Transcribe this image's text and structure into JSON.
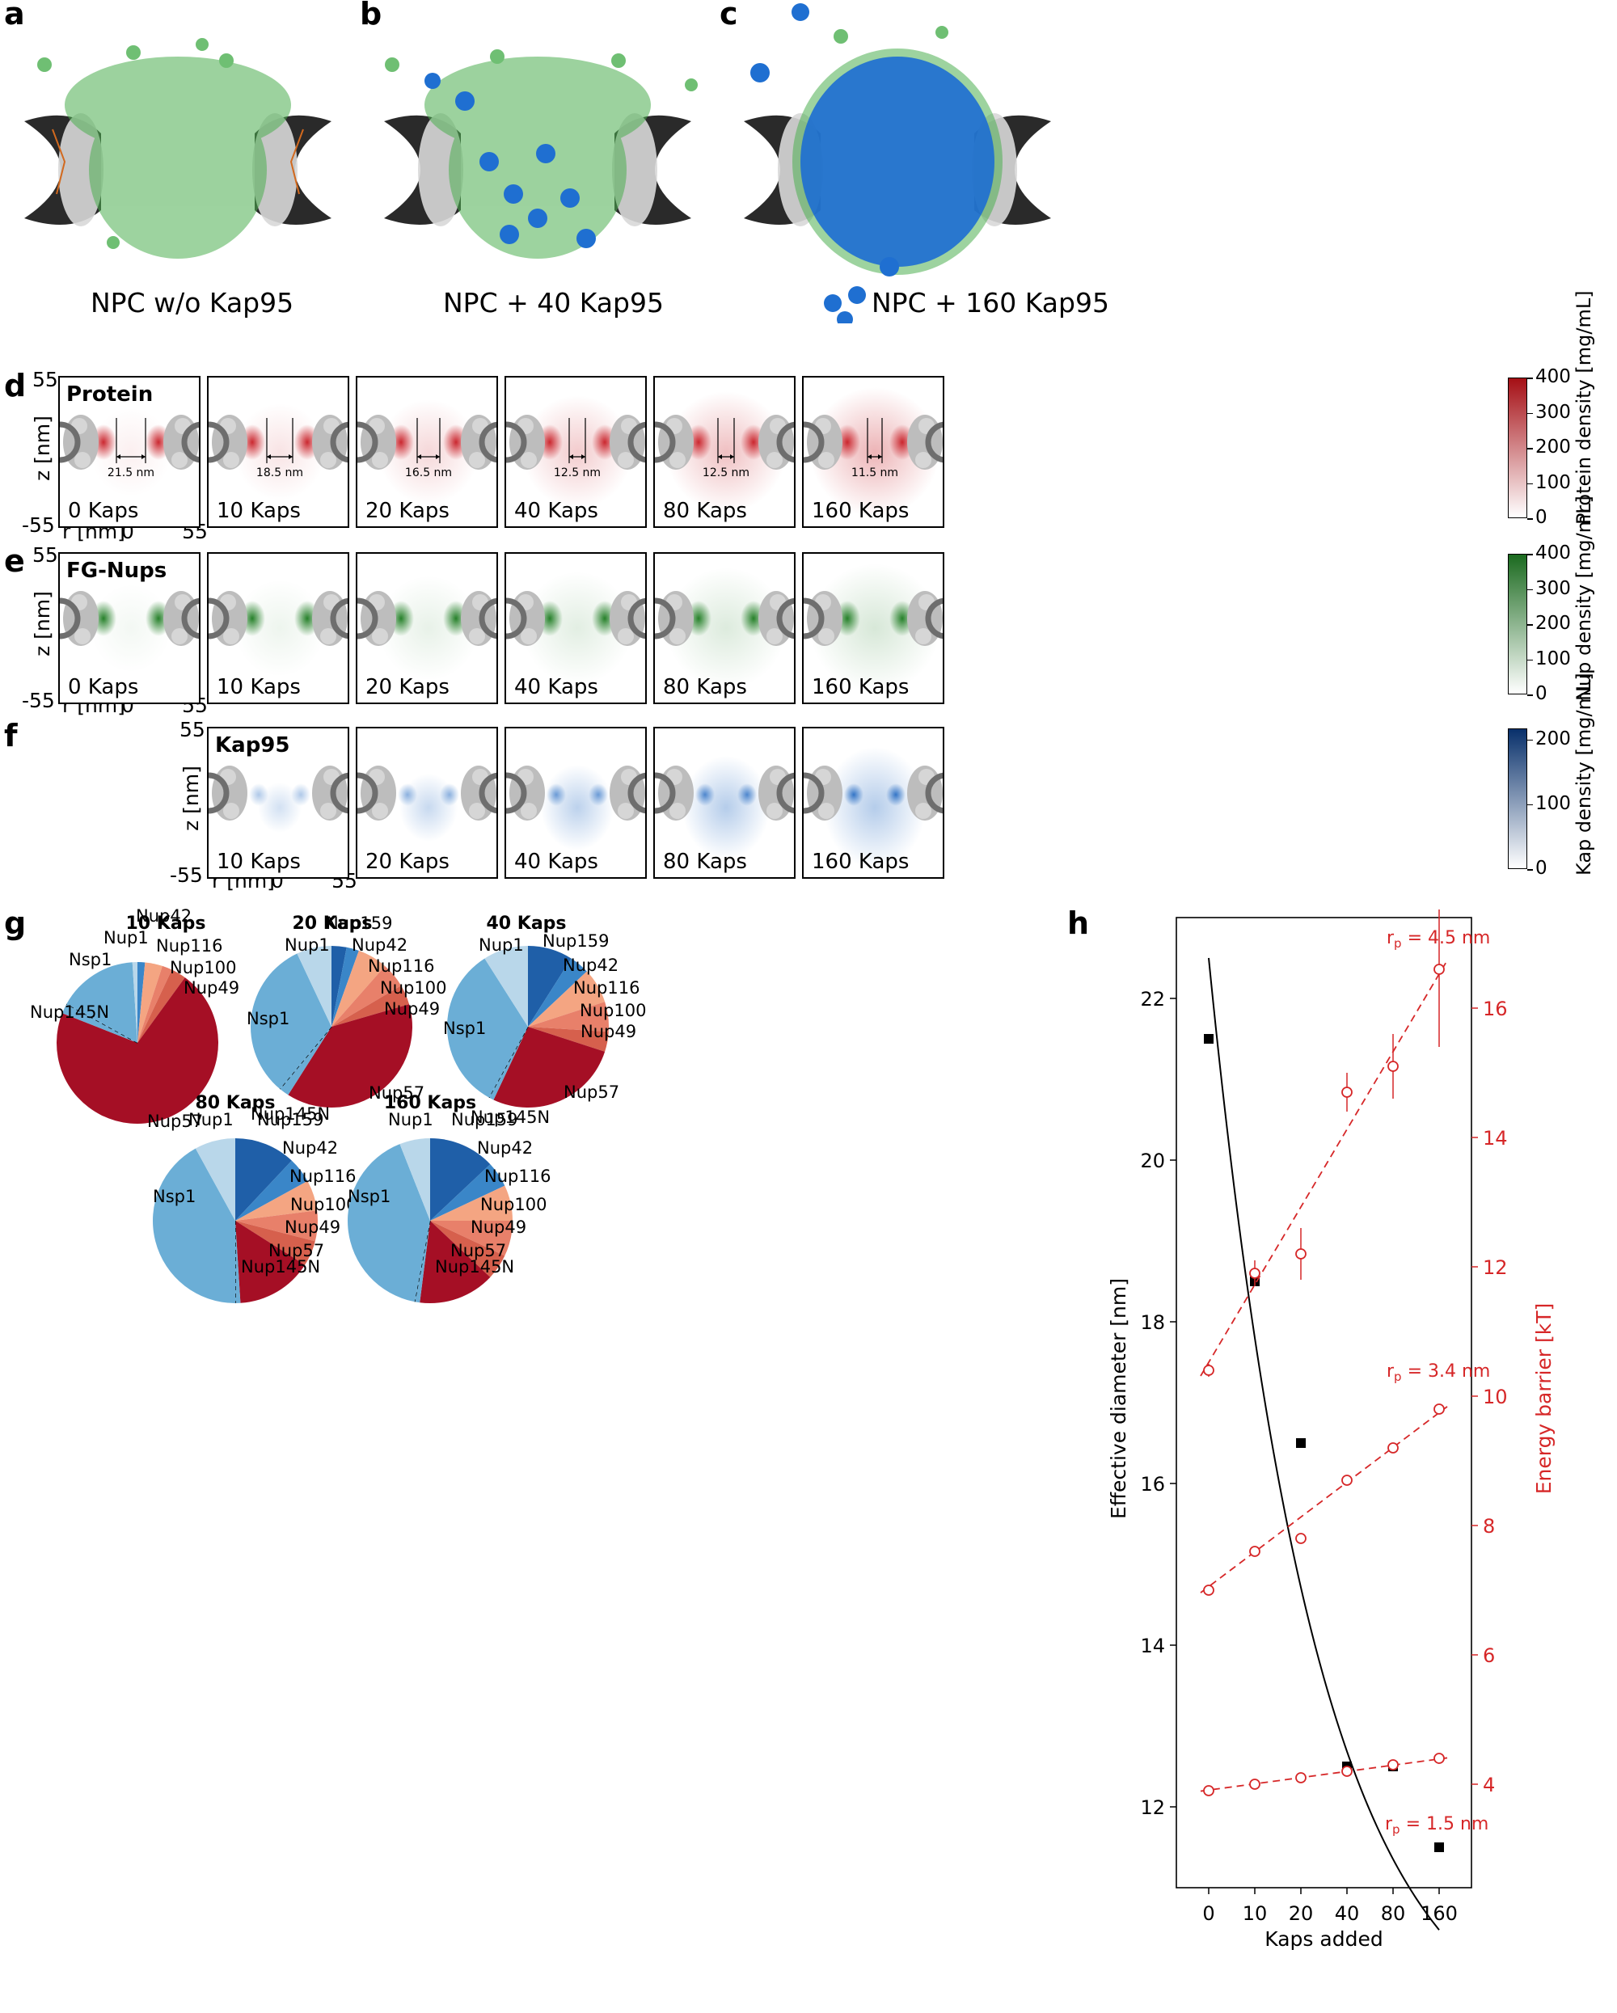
{
  "panels": {
    "a": {
      "letter": "a",
      "caption": "NPC w/o Kap95"
    },
    "b": {
      "letter": "b",
      "caption": "NPC + 40 Kap95"
    },
    "c": {
      "letter": "c",
      "caption": "NPC + 160 Kap95"
    },
    "d": {
      "letter": "d",
      "name": "Protein"
    },
    "e": {
      "letter": "e",
      "name": "FG-Nups"
    },
    "f": {
      "letter": "f",
      "name": "Kap95"
    },
    "g": {
      "letter": "g"
    },
    "h": {
      "letter": "h"
    }
  },
  "density_axes": {
    "z_label": "z [nm]",
    "r_label": "r [nm]",
    "z_top": "55",
    "z_bottom": "-55",
    "r_zero": "0",
    "r_max": "55"
  },
  "protein_row": {
    "kaps": [
      "0 Kaps",
      "10 Kaps",
      "20 Kaps",
      "40 Kaps",
      "80 Kaps",
      "160 Kaps"
    ],
    "diameters": [
      "21.5 nm",
      "18.5 nm",
      "16.5 nm",
      "12.5 nm",
      "12.5 nm",
      "11.5 nm"
    ],
    "colorbar": {
      "label": "Protein density [mg/mL]",
      "ticks": [
        "400",
        "300",
        "200",
        "100",
        "0"
      ],
      "color": "#a50f15"
    }
  },
  "fg_row": {
    "kaps": [
      "0 Kaps",
      "10 Kaps",
      "20 Kaps",
      "40 Kaps",
      "80 Kaps",
      "160 Kaps"
    ],
    "colorbar": {
      "label": "Nup density [mg/mL]",
      "ticks": [
        "400",
        "300",
        "200",
        "100",
        "0"
      ],
      "color": "#1b6a1f"
    }
  },
  "kap_row": {
    "kaps": [
      "10 Kaps",
      "20 Kaps",
      "40 Kaps",
      "80 Kaps",
      "160 Kaps"
    ],
    "colorbar": {
      "label": "Kap density [mg/mL]",
      "ticks": [
        "200",
        "100",
        "0"
      ],
      "color": "#08306b"
    }
  },
  "pies": [
    {
      "title": "10 Kaps",
      "labels": [
        "Nup1",
        "Nup42",
        "Nup116",
        "Nup100",
        "Nup49",
        "Nsp1",
        "Nup145N",
        "Nup57"
      ]
    },
    {
      "title": "20 Kaps",
      "labels": [
        "Nup1",
        "Nup159",
        "Nup42",
        "Nup116",
        "Nup100",
        "Nup49",
        "Nsp1",
        "Nup145N",
        "Nup57"
      ]
    },
    {
      "title": "40 Kaps",
      "labels": [
        "Nup1",
        "Nup159",
        "Nup42",
        "Nup116",
        "Nup100",
        "Nup49",
        "Nsp1",
        "Nup145N",
        "Nup57"
      ]
    },
    {
      "title": "80 Kaps",
      "labels": [
        "Nup1",
        "Nup159",
        "Nup42",
        "Nup116",
        "Nup100",
        "Nup49",
        "Nsp1",
        "Nup57",
        "Nup145N"
      ]
    },
    {
      "title": "160 Kaps",
      "labels": [
        "Nup1",
        "Nup159",
        "Nup42",
        "Nup116",
        "Nup100",
        "Nup49",
        "Nsp1",
        "Nup57",
        "Nup145N"
      ]
    }
  ],
  "pie_colors": {
    "Nup1": "#b9d7ea",
    "Nsp1": "#6baed6",
    "Nup145N": "#6baed6",
    "Nup159": "#1f5fa8",
    "Nup42": "#3a86c8",
    "Nup116": "#f4a582",
    "Nup100": "#e8806a",
    "Nup49": "#d6604d",
    "Nup57": "#a50f25"
  },
  "chart_data": {
    "type": "scatter",
    "xlabel": "Kaps added",
    "ylabel": "Effective diameter [nm]",
    "y2label": "Energy barrier [kT]",
    "x_ticks": [
      "0",
      "10",
      "20",
      "40",
      "80",
      "160"
    ],
    "categories": [
      "0",
      "10",
      "20",
      "40",
      "80",
      "160"
    ],
    "ylim": [
      11,
      23
    ],
    "y_ticks": [
      "12",
      "14",
      "16",
      "18",
      "20",
      "22"
    ],
    "y2lim": [
      2.4,
      17.4
    ],
    "y2_ticks": [
      "4",
      "6",
      "8",
      "10",
      "12",
      "14",
      "16"
    ],
    "series": [
      {
        "name": "",
        "axis": "left",
        "values": [
          21.5,
          18.5,
          16.5,
          12.5,
          12.5,
          11.5
        ],
        "color": "#000000"
      },
      {
        "name": "rp = 4.5 nm",
        "axis": "right",
        "values": [
          10.4,
          11.9,
          12.2,
          14.7,
          15.1,
          16.6
        ],
        "errors": [
          0.1,
          0.2,
          0.4,
          0.3,
          0.5,
          1.2
        ],
        "color": "#d62728"
      },
      {
        "name": "rp = 3.4 nm",
        "axis": "right",
        "values": [
          7.0,
          7.6,
          7.8,
          8.7,
          9.2,
          9.8
        ],
        "color": "#d62728"
      },
      {
        "name": "rp = 1.5 nm",
        "axis": "right",
        "values": [
          3.9,
          4.0,
          4.1,
          4.2,
          4.3,
          4.4
        ],
        "color": "#d62728"
      }
    ],
    "annotations": {
      "rp45_text": "r",
      "rp45_sub": "p",
      "rp45_val": " = 4.5 nm",
      "rp34_val": " = 3.4 nm",
      "rp15_val": " = 1.5 nm"
    },
    "grid": false
  }
}
